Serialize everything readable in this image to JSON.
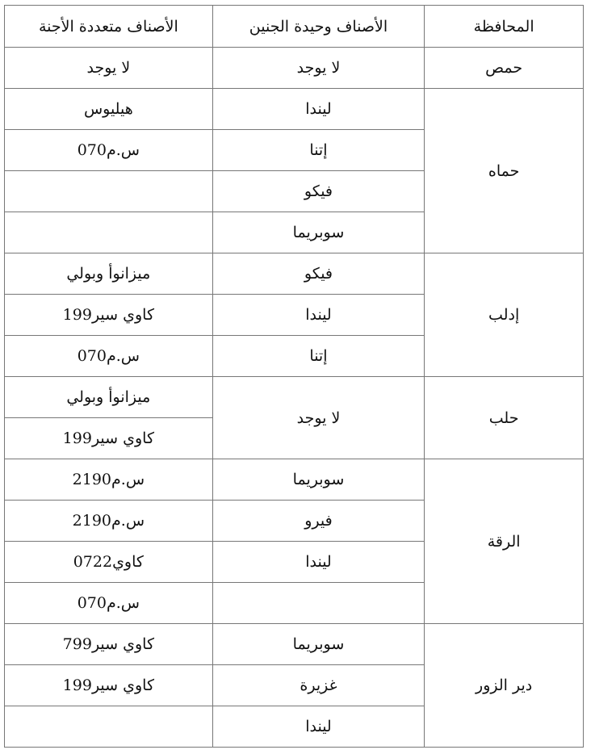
{
  "headers": {
    "governorate": "المحافظة",
    "single_embryo": "الأصناف وحيدة الجنين",
    "multi_embryo": "الأصناف متعددة الأجنة"
  },
  "rows": [
    {
      "governorate": "حمص",
      "single": [
        "لا يوجد"
      ],
      "multi": [
        "لا يوجد"
      ]
    },
    {
      "governorate": "حماه",
      "single": [
        "ليندا",
        "إتنا",
        "فيكو",
        "سوبريما"
      ],
      "multi": [
        "هيليوس",
        "س.م070",
        "",
        ""
      ]
    },
    {
      "governorate": "إدلب",
      "single": [
        "فيكو",
        "ليندا",
        "إتنا"
      ],
      "multi": [
        "ميزانوأ وبولي",
        "كاوي سير199",
        "س.م070"
      ]
    },
    {
      "governorate": "حلب",
      "single": [
        "لا يوجد"
      ],
      "multi": [
        "ميزانوأ وبولي",
        "كاوي سير199"
      ]
    },
    {
      "governorate": "الرقة",
      "single": [
        "سوبريما",
        "فيرو",
        "ليندا",
        ""
      ],
      "multi": [
        "س.م2190",
        "س.م2190",
        "كاوي0722",
        "س.م070"
      ]
    },
    {
      "governorate": "دير الزور",
      "single": [
        "سوبريما",
        "غزيرة",
        "ليندا"
      ],
      "multi": [
        "كاوي سير799",
        "كاوي سير199",
        ""
      ]
    }
  ]
}
